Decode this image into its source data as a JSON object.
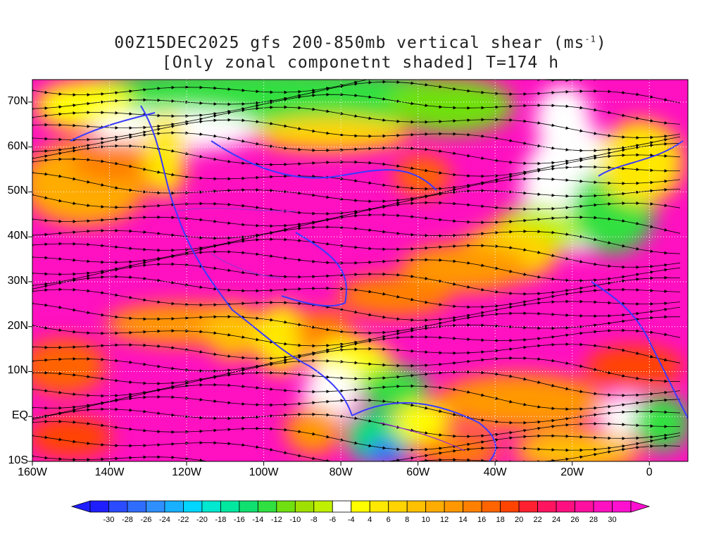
{
  "title": {
    "line1_prefix": "00Z15DEC2025 gfs 200-850mb vertical shear (ms",
    "line1_exponent": "-1",
    "line1_suffix": ")",
    "line2": "[Only zonal componetnt shaded] T=174 h"
  },
  "map": {
    "region": "North America, Atlantic and Eastern Pacific",
    "lon_range": [
      -160,
      10
    ],
    "lat_range": [
      -10,
      75
    ],
    "lon_ticks": [
      {
        "lon": -160,
        "label": "160W"
      },
      {
        "lon": -140,
        "label": "140W"
      },
      {
        "lon": -120,
        "label": "120W"
      },
      {
        "lon": -100,
        "label": "100W"
      },
      {
        "lon": -80,
        "label": "80W"
      },
      {
        "lon": -60,
        "label": "60W"
      },
      {
        "lon": -40,
        "label": "40W"
      },
      {
        "lon": -20,
        "label": "20W"
      },
      {
        "lon": 0,
        "label": "0"
      }
    ],
    "lat_ticks": [
      {
        "lat": 70,
        "label": "70N"
      },
      {
        "lat": 60,
        "label": "60N"
      },
      {
        "lat": 50,
        "label": "50N"
      },
      {
        "lat": 40,
        "label": "40N"
      },
      {
        "lat": 30,
        "label": "30N"
      },
      {
        "lat": 20,
        "label": "20N"
      },
      {
        "lat": 10,
        "label": "10N"
      },
      {
        "lat": 0,
        "label": "EQ"
      },
      {
        "lat": -10,
        "label": "10S"
      }
    ],
    "gridlines": "dotted",
    "coastline_color": "#3a3aff",
    "border_color": "#9a32cd",
    "streamline_color": "#000000"
  },
  "colorbar": {
    "unit": "ms-1",
    "labels": [
      "-30",
      "-28",
      "-26",
      "-24",
      "-22",
      "-20",
      "-18",
      "-16",
      "-14",
      "-12",
      "-10",
      "-8",
      "-6",
      "-4",
      "4",
      "6",
      "8",
      "10",
      "12",
      "14",
      "16",
      "18",
      "20",
      "22",
      "24",
      "26",
      "28",
      "30"
    ],
    "colors": [
      "#1e1eff",
      "#2a4bff",
      "#2f6dff",
      "#2f8fff",
      "#18b0ff",
      "#00d6ff",
      "#00e8d0",
      "#00e8a0",
      "#10e070",
      "#30e040",
      "#70e010",
      "#a0e000",
      "#c0f000",
      "#ffffff",
      "#ffff00",
      "#ffe800",
      "#ffd400",
      "#ffc000",
      "#ffac00",
      "#ff9800",
      "#ff8000",
      "#ff6400",
      "#ff4400",
      "#ff2030",
      "#ff1460",
      "#ff1080",
      "#ff10a0",
      "#ff10c0",
      "#ff10d0"
    ]
  }
}
